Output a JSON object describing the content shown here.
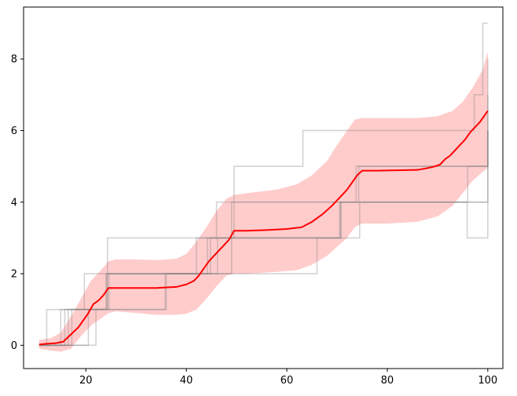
{
  "chart_data": {
    "type": "line",
    "title": "",
    "xlabel": "",
    "ylabel": "",
    "xlim": [
      7.6,
      103.0
    ],
    "ylim": [
      -0.65,
      9.45
    ],
    "xticks": [
      20,
      40,
      60,
      80,
      100
    ],
    "yticks": [
      0,
      2,
      4,
      6,
      8
    ],
    "grid": false,
    "legend": "none",
    "colors": {
      "mean": "#ff0000",
      "band": "#ff9999",
      "trajectories": "#808080"
    },
    "band": {
      "x": [
        10.7,
        13.0,
        15.0,
        17.0,
        19.0,
        21.0,
        23.0,
        24.5,
        26.0,
        30.0,
        34.0,
        38.0,
        40.0,
        42.0,
        44.0,
        46.0,
        48.0,
        49.5,
        52.0,
        58.0,
        62.0,
        65.0,
        68.0,
        70.0,
        72.0,
        73.5,
        75.0,
        80.0,
        86.0,
        90.0,
        93.0,
        95.0,
        97.0,
        99.0,
        100.0
      ],
      "lower": [
        -0.1,
        -0.15,
        -0.18,
        -0.1,
        0.25,
        0.55,
        0.75,
        0.9,
        0.95,
        0.9,
        0.85,
        0.85,
        0.88,
        1.0,
        1.3,
        1.65,
        1.95,
        2.0,
        2.0,
        2.05,
        2.1,
        2.25,
        2.5,
        2.75,
        3.0,
        3.3,
        3.4,
        3.4,
        3.45,
        3.6,
        3.9,
        4.25,
        4.6,
        4.85,
        4.95
      ],
      "upper": [
        0.15,
        0.2,
        0.35,
        0.8,
        1.3,
        1.8,
        2.1,
        2.35,
        2.4,
        2.4,
        2.38,
        2.42,
        2.55,
        2.9,
        3.3,
        3.75,
        4.1,
        4.2,
        4.25,
        4.35,
        4.5,
        4.75,
        5.15,
        5.6,
        6.0,
        6.3,
        6.35,
        6.35,
        6.35,
        6.4,
        6.55,
        6.8,
        7.2,
        7.7,
        8.2
      ]
    },
    "mean": {
      "x": [
        10.7,
        12.0,
        14.0,
        15.5,
        17.0,
        18.5,
        19.5,
        20.5,
        21.5,
        22.5,
        23.5,
        24.5,
        26.0,
        30.0,
        34.0,
        38.0,
        40.0,
        41.5,
        42.5,
        43.5,
        44.5,
        45.5,
        46.5,
        47.5,
        48.5,
        49.5,
        52.0,
        56.0,
        60.0,
        63.0,
        65.0,
        67.0,
        69.0,
        71.0,
        72.0,
        73.0,
        74.0,
        75.0,
        78.0,
        82.0,
        86.0,
        88.0,
        89.5,
        90.5,
        91.5,
        92.5,
        93.5,
        94.5,
        95.5,
        96.5,
        97.5,
        98.5,
        99.5,
        100.0
      ],
      "y": [
        0.02,
        0.04,
        0.06,
        0.1,
        0.3,
        0.5,
        0.7,
        0.9,
        1.15,
        1.25,
        1.4,
        1.6,
        1.6,
        1.6,
        1.6,
        1.63,
        1.7,
        1.8,
        1.95,
        2.15,
        2.35,
        2.5,
        2.65,
        2.8,
        2.95,
        3.2,
        3.2,
        3.22,
        3.25,
        3.3,
        3.45,
        3.65,
        3.9,
        4.2,
        4.35,
        4.55,
        4.75,
        4.88,
        4.88,
        4.89,
        4.9,
        4.95,
        5.0,
        5.05,
        5.2,
        5.3,
        5.45,
        5.6,
        5.75,
        5.95,
        6.1,
        6.25,
        6.45,
        6.55
      ]
    },
    "trajectories": [
      {
        "x": [
          10.7,
          12.2,
          15.3,
          24.3,
          49.5,
          61.8,
          63.2,
          72.2,
          97.3,
          99.0,
          100.0
        ],
        "y": [
          0,
          1,
          1,
          3,
          5,
          5,
          6,
          6,
          7,
          9,
          9
        ]
      },
      {
        "x": [
          10.7,
          15.0,
          19.7,
          23.5,
          42.0,
          46.0,
          65.0,
          73.8,
          95.3,
          100.0
        ],
        "y": [
          0,
          1,
          2,
          2,
          3,
          4,
          4,
          5,
          5,
          8
        ]
      },
      {
        "x": [
          10.7,
          17.2,
          21.8,
          24.2,
          44.8,
          49.0,
          68.5,
          74.3,
          97.5,
          100.0
        ],
        "y": [
          0,
          1,
          1,
          2,
          3,
          4,
          4,
          5,
          5,
          6
        ]
      },
      {
        "x": [
          10.7,
          13.5,
          22.0,
          36.0,
          43.0,
          66.0,
          69.5,
          74.5,
          90.8,
          100.0
        ],
        "y": [
          0,
          0,
          1,
          2,
          2,
          3,
          3,
          4,
          4,
          6
        ]
      },
      {
        "x": [
          10.7,
          15.8,
          20.0,
          24.0,
          42.3,
          49.0,
          68.0,
          70.8,
          96.0,
          100.0
        ],
        "y": [
          0,
          1,
          1,
          2,
          2,
          3,
          3,
          4,
          5,
          7
        ]
      },
      {
        "x": [
          10.7,
          13.0,
          20.5,
          24.6,
          41.8,
          46.2,
          65.5,
          70.7,
          95.8,
          100.0
        ],
        "y": [
          0,
          0,
          1,
          2,
          2,
          3,
          3,
          4,
          4,
          6
        ]
      },
      {
        "x": [
          10.7,
          16.5,
          22.0,
          35.8,
          44.2,
          49.7,
          70.5,
          74.6,
          95.9,
          100.0
        ],
        "y": [
          0,
          1,
          1,
          2,
          3,
          3,
          4,
          4,
          3,
          4
        ]
      }
    ]
  }
}
